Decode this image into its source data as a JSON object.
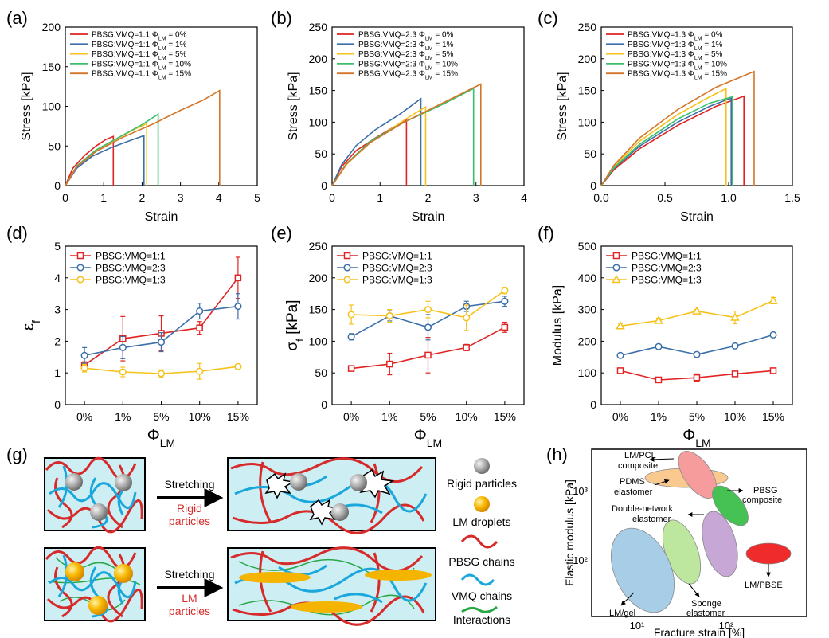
{
  "colors": {
    "red": "#e02323",
    "blue": "#3b6fa8",
    "yellow": "#f6c21a",
    "green": "#3cbf6b",
    "orange": "#d3762a",
    "water": "#cdeff4",
    "pbsg": "#d72b2b",
    "vmq": "#1aa7dc",
    "interaction": "#27a845",
    "lm": "#f5b400",
    "particle": "#a9a9a9"
  },
  "panel_labels": [
    "(a)",
    "(b)",
    "(c)",
    "(d)",
    "(e)",
    "(f)",
    "(g)",
    "(h)"
  ],
  "chart_data": [
    {
      "type": "line",
      "panel": "(a)",
      "xlabel": "Strain",
      "ylabel": "Stress [kPa]",
      "xlim": [
        0,
        5
      ],
      "ylim": [
        0,
        200
      ],
      "xticks": [
        "0",
        "1",
        "2",
        "3",
        "4",
        "5"
      ],
      "yticks": [
        "0",
        "50",
        "100",
        "150",
        "200"
      ],
      "legend": "top-left",
      "series": [
        {
          "name": "PBSG:VMQ=1:1 Φ_LM = 0%",
          "color": "red",
          "x": [
            0,
            0.2,
            0.5,
            0.8,
            1.05,
            1.25,
            1.25
          ],
          "y": [
            0,
            22,
            38,
            50,
            58,
            62,
            0
          ]
        },
        {
          "name": "PBSG:VMQ=1:1 Φ_LM = 1%",
          "color": "blue",
          "x": [
            0,
            0.3,
            0.7,
            1.2,
            1.7,
            2.05,
            2.05
          ],
          "y": [
            0,
            22,
            37,
            48,
            57,
            63,
            0
          ]
        },
        {
          "name": "PBSG:VMQ=1:1 Φ_LM = 5%",
          "color": "yellow",
          "x": [
            0,
            0.3,
            0.8,
            1.3,
            1.8,
            2.12,
            2.12
          ],
          "y": [
            0,
            24,
            44,
            58,
            71,
            78,
            0
          ]
        },
        {
          "name": "PBSG:VMQ=1:1 Φ_LM = 10%",
          "color": "green",
          "x": [
            0,
            0.3,
            0.8,
            1.4,
            2.0,
            2.42,
            2.42
          ],
          "y": [
            0,
            25,
            45,
            61,
            77,
            90,
            0
          ]
        },
        {
          "name": "PBSG:VMQ=1:1 Φ_LM = 15%",
          "color": "orange",
          "x": [
            0,
            0.3,
            0.8,
            1.5,
            2.3,
            3.0,
            3.6,
            4.02,
            4.02
          ],
          "y": [
            0,
            24,
            43,
            61,
            78,
            95,
            108,
            120,
            0
          ]
        }
      ]
    },
    {
      "type": "line",
      "panel": "(b)",
      "xlabel": "Strain",
      "ylabel": "Stress [kPa]",
      "xlim": [
        0,
        4
      ],
      "ylim": [
        0,
        250
      ],
      "xticks": [
        "0",
        "1",
        "2",
        "3",
        "4"
      ],
      "yticks": [
        "0",
        "50",
        "100",
        "150",
        "200",
        "250"
      ],
      "legend": "top-left",
      "series": [
        {
          "name": "PBSG:VMQ=2:3 Φ_LM = 0%",
          "color": "red",
          "x": [
            0,
            0.2,
            0.5,
            0.9,
            1.3,
            1.55,
            1.55
          ],
          "y": [
            0,
            30,
            55,
            75,
            93,
            103,
            0
          ]
        },
        {
          "name": "PBSG:VMQ=2:3 Φ_LM = 1%",
          "color": "blue",
          "x": [
            0,
            0.2,
            0.5,
            0.9,
            1.4,
            1.85,
            1.85
          ],
          "y": [
            0,
            33,
            63,
            88,
            112,
            137,
            0
          ]
        },
        {
          "name": "PBSG:VMQ=2:3 Φ_LM = 5%",
          "color": "yellow",
          "x": [
            0,
            0.3,
            0.7,
            1.2,
            1.6,
            1.95,
            1.95
          ],
          "y": [
            0,
            33,
            63,
            88,
            108,
            124,
            0
          ]
        },
        {
          "name": "PBSG:VMQ=2:3 Φ_LM = 10%",
          "color": "green",
          "x": [
            0,
            0.3,
            0.8,
            1.5,
            2.3,
            2.95,
            2.95
          ],
          "y": [
            0,
            35,
            70,
            100,
            128,
            153,
            0
          ]
        },
        {
          "name": "PBSG:VMQ=2:3 Φ_LM = 15%",
          "color": "orange",
          "x": [
            0,
            0.3,
            0.8,
            1.5,
            2.3,
            3.1,
            3.1
          ],
          "y": [
            0,
            34,
            68,
            100,
            130,
            160,
            0
          ]
        }
      ]
    },
    {
      "type": "line",
      "panel": "(c)",
      "xlabel": "Strain",
      "ylabel": "Stress [kPa]",
      "xlim": [
        0,
        1.5
      ],
      "ylim": [
        0,
        250
      ],
      "xticks": [
        "0.0",
        "0.5",
        "1.0",
        "1.5"
      ],
      "yticks": [
        "0",
        "50",
        "100",
        "150",
        "200",
        "250"
      ],
      "legend": "top-left",
      "series": [
        {
          "name": "PBSG:VMQ=1:3 Φ_LM = 0%",
          "color": "red",
          "x": [
            0,
            0.1,
            0.3,
            0.6,
            0.9,
            1.12,
            1.12
          ],
          "y": [
            0,
            25,
            58,
            95,
            125,
            141,
            0
          ]
        },
        {
          "name": "PBSG:VMQ=1:3 Φ_LM = 1%",
          "color": "blue",
          "x": [
            0,
            0.1,
            0.3,
            0.6,
            0.85,
            1.02,
            1.02
          ],
          "y": [
            0,
            27,
            62,
            100,
            125,
            138,
            0
          ]
        },
        {
          "name": "PBSG:VMQ=1:3 Φ_LM = 5%",
          "color": "yellow",
          "x": [
            0,
            0.1,
            0.3,
            0.6,
            0.85,
            0.98,
            0.98
          ],
          "y": [
            0,
            30,
            70,
            112,
            140,
            153,
            0
          ]
        },
        {
          "name": "PBSG:VMQ=1:3 Φ_LM = 10%",
          "color": "green",
          "x": [
            0,
            0.1,
            0.3,
            0.6,
            0.85,
            1.03,
            1.03
          ],
          "y": [
            0,
            28,
            65,
            105,
            130,
            140,
            0
          ]
        },
        {
          "name": "PBSG:VMQ=1:3 Φ_LM = 15%",
          "color": "orange",
          "x": [
            0,
            0.1,
            0.3,
            0.6,
            0.9,
            1.2,
            1.2
          ],
          "y": [
            0,
            32,
            75,
            120,
            155,
            180,
            0
          ]
        }
      ]
    },
    {
      "type": "line",
      "panel": "(d)",
      "xlabel": "Φ_LM",
      "ylabel": "ε_f",
      "categories": [
        "0%",
        "1%",
        "5%",
        "10%",
        "15%"
      ],
      "ylim": [
        0,
        5
      ],
      "yticks": [
        "0",
        "1",
        "2",
        "3",
        "4",
        "5"
      ],
      "legend": "top-left",
      "series": [
        {
          "name": "PBSG:VMQ=1:1",
          "color": "red",
          "marker": "square",
          "values": [
            1.25,
            2.08,
            2.25,
            2.42,
            4.0
          ],
          "err": [
            0.1,
            0.7,
            0.55,
            0.2,
            0.65
          ]
        },
        {
          "name": "PBSG:VMQ=2:3",
          "color": "blue",
          "marker": "circle",
          "values": [
            1.55,
            1.8,
            1.97,
            2.95,
            3.1
          ],
          "err": [
            0.25,
            0.35,
            0.3,
            0.25,
            0.4
          ]
        },
        {
          "name": "PBSG:VMQ=1:3",
          "color": "yellow",
          "marker": "circle",
          "values": [
            1.15,
            1.03,
            0.98,
            1.05,
            1.2
          ],
          "err": [
            0.12,
            0.15,
            0.12,
            0.25,
            0.05
          ]
        }
      ]
    },
    {
      "type": "line",
      "panel": "(e)",
      "xlabel": "Φ_LM",
      "ylabel": "σ_f [kPa]",
      "categories": [
        "0%",
        "1%",
        "5%",
        "10%",
        "15%"
      ],
      "ylim": [
        0,
        250
      ],
      "yticks": [
        "0",
        "50",
        "100",
        "150",
        "200",
        "250"
      ],
      "legend": "top-left",
      "series": [
        {
          "name": "PBSG:VMQ=1:1",
          "color": "red",
          "marker": "square",
          "values": [
            57,
            64,
            78,
            90,
            122
          ],
          "err": [
            3,
            17,
            28,
            5,
            8
          ]
        },
        {
          "name": "PBSG:VMQ=2:3",
          "color": "blue",
          "marker": "circle",
          "values": [
            107,
            140,
            122,
            155,
            163
          ],
          "err": [
            5,
            8,
            20,
            8,
            8
          ]
        },
        {
          "name": "PBSG:VMQ=1:3",
          "color": "yellow",
          "marker": "circle",
          "values": [
            142,
            140,
            150,
            137,
            180
          ],
          "err": [
            15,
            10,
            13,
            20,
            5
          ]
        }
      ]
    },
    {
      "type": "line",
      "panel": "(f)",
      "xlabel": "Φ_LM",
      "ylabel": "Modulus [kPa]",
      "categories": [
        "0%",
        "1%",
        "5%",
        "10%",
        "15%"
      ],
      "ylim": [
        0,
        500
      ],
      "yticks": [
        "0",
        "100",
        "200",
        "300",
        "400",
        "500"
      ],
      "legend": "top-left",
      "series": [
        {
          "name": "PBSG:VMQ=1:1",
          "color": "red",
          "marker": "square",
          "values": [
            107,
            78,
            85,
            97,
            107
          ],
          "err": [
            5,
            5,
            12,
            5,
            6
          ]
        },
        {
          "name": "PBSG:VMQ=2:3",
          "color": "blue",
          "marker": "circle",
          "values": [
            155,
            183,
            158,
            185,
            220
          ],
          "err": [
            4,
            4,
            5,
            4,
            5
          ]
        },
        {
          "name": "PBSG:VMQ=1:3",
          "color": "yellow",
          "marker": "triangle",
          "values": [
            248,
            265,
            295,
            275,
            328
          ],
          "err": [
            8,
            8,
            5,
            20,
            10
          ]
        }
      ]
    }
  ],
  "schematic": {
    "arrow1_label_top": "Stretching",
    "arrow1_label_bottom": "Rigid\nparticles",
    "arrow2_label_top": "Stretching",
    "arrow2_label_bottom": "LM\nparticles",
    "legend": [
      {
        "label": "Rigid particles",
        "icon": "gray-sphere-icon"
      },
      {
        "label": "LM droplets",
        "icon": "yellow-sphere-icon"
      },
      {
        "label": "PBSG chains",
        "icon": "red-chain-icon"
      },
      {
        "label": "VMQ chains",
        "icon": "blue-chain-icon"
      },
      {
        "label": "Interactions",
        "icon": "green-line-icon"
      }
    ]
  },
  "ashby": {
    "xlabel": "Fracture strain [%]",
    "ylabel": "Elastic modulus [kPa]",
    "xticks": [
      "10¹",
      "10²"
    ],
    "yticks": [
      "10²",
      "10³"
    ],
    "regions": [
      {
        "label": "LM/PCL\ncomposite",
        "color": "#f79c9c"
      },
      {
        "label": "PDMS\nelastomer",
        "color": "#f9c98f"
      },
      {
        "label": "PBSG\ncomposite",
        "color": "#46c254"
      },
      {
        "label": "Double-network\nelastomer",
        "color": "#c7a7d6"
      },
      {
        "label": "Sponge\nelastomer",
        "color": "#bde79f"
      },
      {
        "label": "LM/gel",
        "color": "#a8cde6"
      },
      {
        "label": "LM/PBSE",
        "color": "#ef2b2b"
      }
    ]
  }
}
